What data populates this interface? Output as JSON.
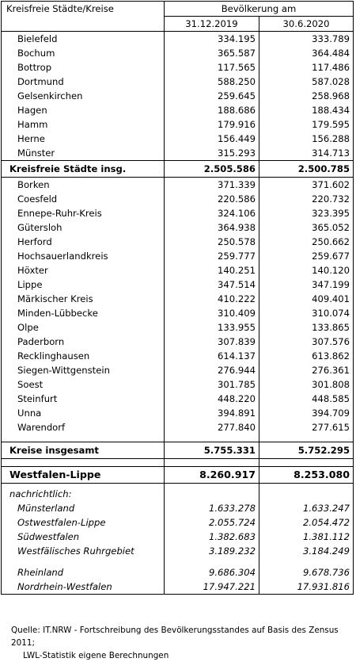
{
  "header": {
    "title": "Kreisfreie Städte/Kreise",
    "group": "Bevölkerung am",
    "date1": "31.12.2019",
    "date2": "30.6.2020"
  },
  "cities": [
    {
      "name": "Bielefeld",
      "v2019": "334.195",
      "v2020": "333.789"
    },
    {
      "name": "Bochum",
      "v2019": "365.587",
      "v2020": "364.484"
    },
    {
      "name": "Bottrop",
      "v2019": "117.565",
      "v2020": "117.486"
    },
    {
      "name": "Dortmund",
      "v2019": "588.250",
      "v2020": "587.028"
    },
    {
      "name": "Gelsenkirchen",
      "v2019": "259.645",
      "v2020": "258.968"
    },
    {
      "name": "Hagen",
      "v2019": "188.686",
      "v2020": "188.434"
    },
    {
      "name": "Hamm",
      "v2019": "179.916",
      "v2020": "179.595"
    },
    {
      "name": "Herne",
      "v2019": "156.449",
      "v2020": "156.288"
    },
    {
      "name": "Münster",
      "v2019": "315.293",
      "v2020": "314.713"
    }
  ],
  "cities_total": {
    "name": "Kreisfreie Städte insg.",
    "v2019": "2.505.586",
    "v2020": "2.500.785"
  },
  "districts": [
    {
      "name": "Borken",
      "v2019": "371.339",
      "v2020": "371.602"
    },
    {
      "name": "Coesfeld",
      "v2019": "220.586",
      "v2020": "220.732"
    },
    {
      "name": "Ennepe-Ruhr-Kreis",
      "v2019": "324.106",
      "v2020": "323.395"
    },
    {
      "name": "Gütersloh",
      "v2019": "364.938",
      "v2020": "365.052"
    },
    {
      "name": "Herford",
      "v2019": "250.578",
      "v2020": "250.662"
    },
    {
      "name": "Hochsauerlandkreis",
      "v2019": "259.777",
      "v2020": "259.677"
    },
    {
      "name": "Höxter",
      "v2019": "140.251",
      "v2020": "140.120"
    },
    {
      "name": "Lippe",
      "v2019": "347.514",
      "v2020": "347.199"
    },
    {
      "name": "Märkischer Kreis",
      "v2019": "410.222",
      "v2020": "409.401"
    },
    {
      "name": "Minden-Lübbecke",
      "v2019": "310.409",
      "v2020": "310.074"
    },
    {
      "name": "Olpe",
      "v2019": "133.955",
      "v2020": "133.865"
    },
    {
      "name": "Paderborn",
      "v2019": "307.839",
      "v2020": "307.576"
    },
    {
      "name": "Recklinghausen",
      "v2019": "614.137",
      "v2020": "613.862"
    },
    {
      "name": "Siegen-Wittgenstein",
      "v2019": "276.944",
      "v2020": "276.361"
    },
    {
      "name": "Soest",
      "v2019": "301.785",
      "v2020": "301.808"
    },
    {
      "name": "Steinfurt",
      "v2019": "448.220",
      "v2020": "448.585"
    },
    {
      "name": "Unna",
      "v2019": "394.891",
      "v2020": "394.709"
    },
    {
      "name": "Warendorf",
      "v2019": "277.840",
      "v2020": "277.615"
    }
  ],
  "districts_total": {
    "name": "Kreise insgesamt",
    "v2019": "5.755.331",
    "v2020": "5.752.295"
  },
  "region_total": {
    "name": "Westfalen-Lippe",
    "v2019": "8.260.917",
    "v2020": "8.253.080"
  },
  "notes_heading": "nachrichtlich:",
  "notes": [
    {
      "name": "Münsterland",
      "v2019": "1.633.278",
      "v2020": "1.633.247"
    },
    {
      "name": "Ostwestfalen-Lippe",
      "v2019": "2.055.724",
      "v2020": "2.054.472"
    },
    {
      "name": "Südwestfalen",
      "v2019": "1.382.683",
      "v2020": "1.381.112"
    },
    {
      "name": "Westfälisches Ruhrgebiet",
      "v2019": "3.189.232",
      "v2020": "3.184.249"
    }
  ],
  "notes_other": [
    {
      "name": "Rheinland",
      "v2019": "9.686.304",
      "v2020": "9.678.736"
    },
    {
      "name": "Nordrhein-Westfalen",
      "v2019": "17.947.221",
      "v2020": "17.931.816"
    }
  ],
  "source": {
    "line1": "Quelle: IT.NRW - Fortschreibung des Bevölkerungsstandes auf Basis des Zensus 2011;",
    "line2": "LWL-Statistik eigene Berechnungen"
  }
}
